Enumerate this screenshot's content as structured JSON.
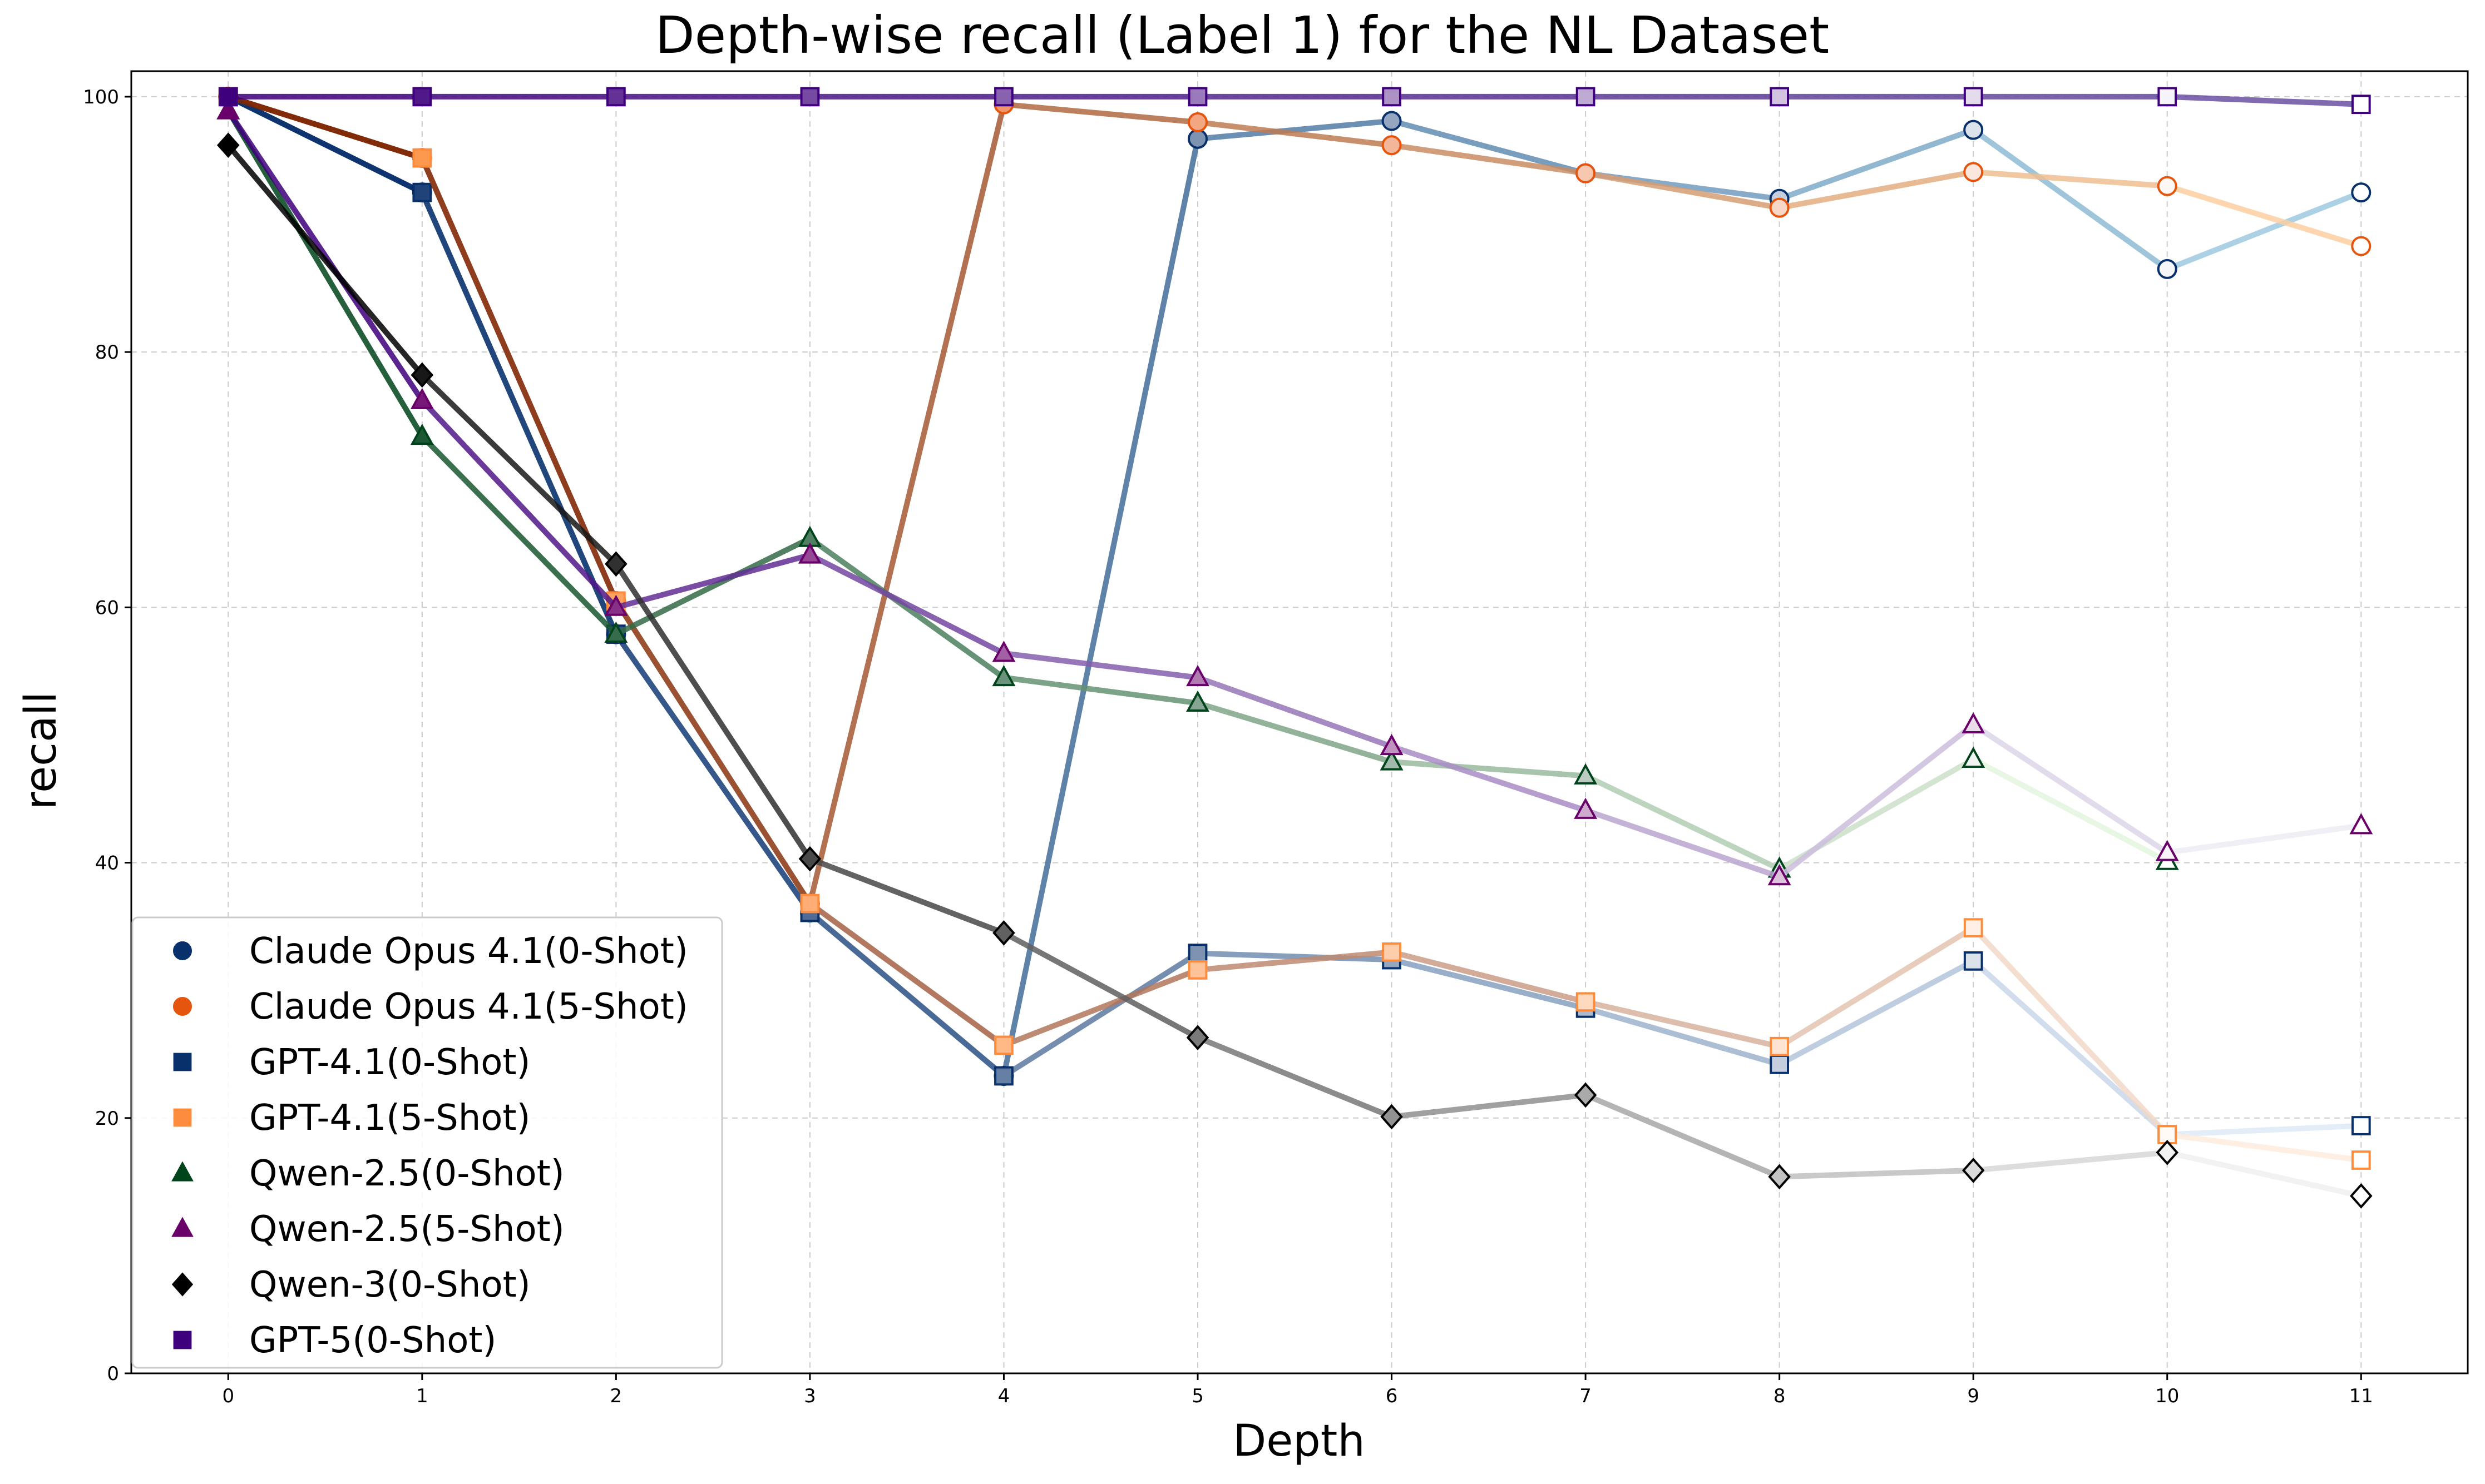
{
  "chart_data": {
    "type": "line",
    "title": "Depth-wise recall (Label 1) for the NL Dataset",
    "xlabel": "Depth",
    "ylabel": "recall",
    "x": [
      0,
      1,
      2,
      3,
      4,
      5,
      6,
      7,
      8,
      9,
      10,
      11
    ],
    "xticks": [
      "0",
      "1",
      "2",
      "3",
      "4",
      "5",
      "6",
      "7",
      "8",
      "9",
      "10",
      "11"
    ],
    "yticks": [
      "0",
      "20",
      "40",
      "60",
      "80",
      "100"
    ],
    "xlim": [
      -0.5,
      11.55
    ],
    "ylim": [
      0,
      102
    ],
    "grid": true,
    "legend_position": "bottom-left",
    "series": [
      {
        "name": "Claude Opus 4.1(0-Shot)",
        "marker": "circle",
        "color": "#08306b",
        "line_dark": "#08306b",
        "line_light": "#9ecae1",
        "values": [
          100,
          92.5,
          57.9,
          36.1,
          23.3,
          96.7,
          98.1,
          94.0,
          92.0,
          97.4,
          86.5,
          92.5
        ]
      },
      {
        "name": "Claude Opus 4.1(5-Shot)",
        "marker": "circle",
        "color": "#e6550d",
        "line_dark": "#7f2704",
        "line_light": "#fdd0a2",
        "values": [
          100,
          95.2,
          60.5,
          36.8,
          99.4,
          98.0,
          96.2,
          94.0,
          91.3,
          94.1,
          93.0,
          88.3
        ]
      },
      {
        "name": "GPT-4.1(0-Shot)",
        "marker": "square",
        "color": "#08306b",
        "line_dark": "#08306b",
        "line_light": "#deebf7",
        "values": [
          100,
          92.5,
          57.9,
          36.1,
          23.3,
          32.9,
          32.4,
          28.6,
          24.2,
          32.3,
          18.7,
          19.4
        ]
      },
      {
        "name": "GPT-4.1(5-Shot)",
        "marker": "square",
        "color": "#fd8d3c",
        "line_dark": "#7f2704",
        "line_light": "#feedde",
        "values": [
          100,
          95.2,
          60.5,
          36.8,
          25.7,
          31.6,
          33.0,
          29.1,
          25.6,
          34.9,
          18.7,
          16.7
        ]
      },
      {
        "name": "Qwen-2.5(0-Shot)",
        "marker": "triangle",
        "color": "#00441b",
        "line_dark": "#00441b",
        "line_light": "#e5f5e0",
        "values": [
          98.9,
          73.4,
          57.9,
          65.4,
          54.5,
          52.5,
          47.9,
          46.8,
          39.5,
          48.1,
          40.1,
          null
        ]
      },
      {
        "name": "Qwen-2.5(5-Shot)",
        "marker": "triangle",
        "color": "#6a006a",
        "line_dark": "#3f007d",
        "line_light": "#efedf5",
        "values": [
          98.9,
          76.2,
          60.0,
          64.1,
          56.4,
          54.5,
          49.1,
          44.1,
          38.9,
          50.8,
          40.8,
          42.9
        ]
      },
      {
        "name": "Qwen-3(0-Shot)",
        "marker": "diamond",
        "color": "#000000",
        "line_dark": "#000000",
        "line_light": "#f0f0f0",
        "values": [
          96.2,
          78.2,
          63.4,
          40.3,
          34.5,
          26.3,
          20.1,
          21.8,
          15.4,
          15.9,
          17.3,
          13.9
        ]
      },
      {
        "name": "GPT-5(0-Shot)",
        "marker": "square",
        "color": "#3f007d",
        "line_dark": "#3f007d",
        "line_light": "#6a51a3",
        "values": [
          100,
          100,
          100,
          100,
          100,
          100,
          100,
          100,
          100,
          100,
          100,
          99.4
        ]
      }
    ]
  }
}
